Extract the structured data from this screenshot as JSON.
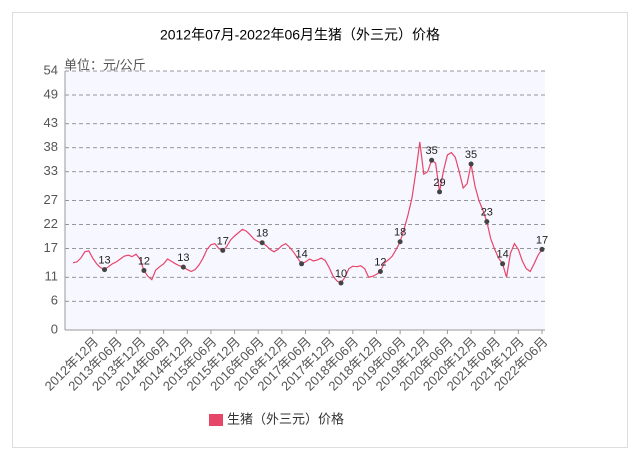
{
  "chart_data": {
    "type": "line",
    "title": "2012年07月-2022年06月生猪（外三元）价格",
    "y_label": "单位：元/公斤",
    "categories": [
      null,
      null,
      null,
      null,
      null,
      "2012年12月",
      null,
      null,
      null,
      null,
      null,
      "2013年06月",
      null,
      null,
      null,
      null,
      null,
      "2013年12月",
      null,
      null,
      null,
      null,
      null,
      "2014年06月",
      null,
      null,
      null,
      null,
      null,
      "2014年12月",
      null,
      null,
      null,
      null,
      null,
      "2015年06月",
      null,
      null,
      null,
      null,
      null,
      "2015年12月",
      null,
      null,
      null,
      null,
      null,
      "2016年06月",
      null,
      null,
      null,
      null,
      null,
      "2016年12月",
      null,
      null,
      null,
      null,
      null,
      "2017年06月",
      null,
      null,
      null,
      null,
      null,
      "2017年12月",
      null,
      null,
      null,
      null,
      null,
      "2018年06月",
      null,
      null,
      null,
      null,
      null,
      "2018年12月",
      null,
      null,
      null,
      null,
      null,
      "2019年06月",
      null,
      null,
      null,
      null,
      null,
      "2019年12月",
      null,
      null,
      null,
      null,
      null,
      "2020年06月",
      null,
      null,
      null,
      null,
      null,
      "2020年12月",
      null,
      null,
      null,
      null,
      null,
      "2021年06月",
      null,
      null,
      null,
      null,
      null,
      "2021年12月",
      null,
      null,
      null,
      null,
      null,
      "2022年06月"
    ],
    "series": [
      {
        "name": "生猪（外三元）价格",
        "color": "#e8456a",
        "values": [
          14,
          14.2,
          15,
          16.3,
          16.5,
          15,
          13.8,
          13,
          12.6,
          13.2,
          13.8,
          14.2,
          14.8,
          15.4,
          15.6,
          15.3,
          15.8,
          14.8,
          12.4,
          11.2,
          10.5,
          12.5,
          13.2,
          13.8,
          14.8,
          14.3,
          13.8,
          13.4,
          13.1,
          12.6,
          12.2,
          12.6,
          13.6,
          15,
          16.8,
          17.8,
          18,
          17,
          16.6,
          17.4,
          18.8,
          19.6,
          20.3,
          21,
          20.6,
          19.8,
          18.9,
          18.4,
          18.2,
          17.6,
          16.8,
          16.3,
          16.8,
          17.6,
          18,
          17.2,
          16.2,
          15,
          13.8,
          14.2,
          14.8,
          14.4,
          14.6,
          15,
          14.5,
          13,
          11.2,
          10.2,
          9.8,
          11,
          12.8,
          13.3,
          13.2,
          13.4,
          12.8,
          11,
          11.2,
          11.6,
          12.2,
          14,
          14.6,
          15.4,
          16.8,
          18.4,
          21,
          24,
          27.5,
          33,
          39.2,
          32.5,
          33,
          35.4,
          34.8,
          28.8,
          33.2,
          36.5,
          37,
          36,
          33,
          29.6,
          30.5,
          34.6,
          30,
          27,
          25,
          22.6,
          19,
          16.8,
          15,
          13.8,
          11,
          16,
          18,
          16.8,
          14.4,
          12.8,
          12.2,
          13.8,
          15.6,
          16.8
        ],
        "value_labels": [
          null,
          null,
          null,
          null,
          null,
          null,
          null,
          null,
          "13",
          null,
          null,
          null,
          null,
          null,
          null,
          null,
          null,
          null,
          "12",
          null,
          null,
          null,
          null,
          null,
          null,
          null,
          null,
          null,
          "13",
          null,
          null,
          null,
          null,
          null,
          null,
          null,
          null,
          null,
          "17",
          null,
          null,
          null,
          null,
          null,
          null,
          null,
          null,
          null,
          "18",
          null,
          null,
          null,
          null,
          null,
          null,
          null,
          null,
          null,
          "14",
          null,
          null,
          null,
          null,
          null,
          null,
          null,
          null,
          null,
          "10",
          null,
          null,
          null,
          null,
          null,
          null,
          null,
          null,
          null,
          "12",
          null,
          null,
          null,
          null,
          "18",
          null,
          null,
          null,
          null,
          null,
          null,
          null,
          "35",
          null,
          "29",
          null,
          null,
          null,
          null,
          null,
          null,
          null,
          "35",
          null,
          null,
          null,
          "23",
          null,
          null,
          null,
          "14",
          null,
          null,
          null,
          null,
          null,
          null,
          null,
          null,
          null,
          "17"
        ]
      }
    ],
    "ylim": [
      0,
      54
    ],
    "yticks": [
      0,
      6,
      11,
      17,
      22,
      27,
      33,
      38,
      43,
      49,
      54
    ],
    "grid": true,
    "legend": "bottom"
  }
}
